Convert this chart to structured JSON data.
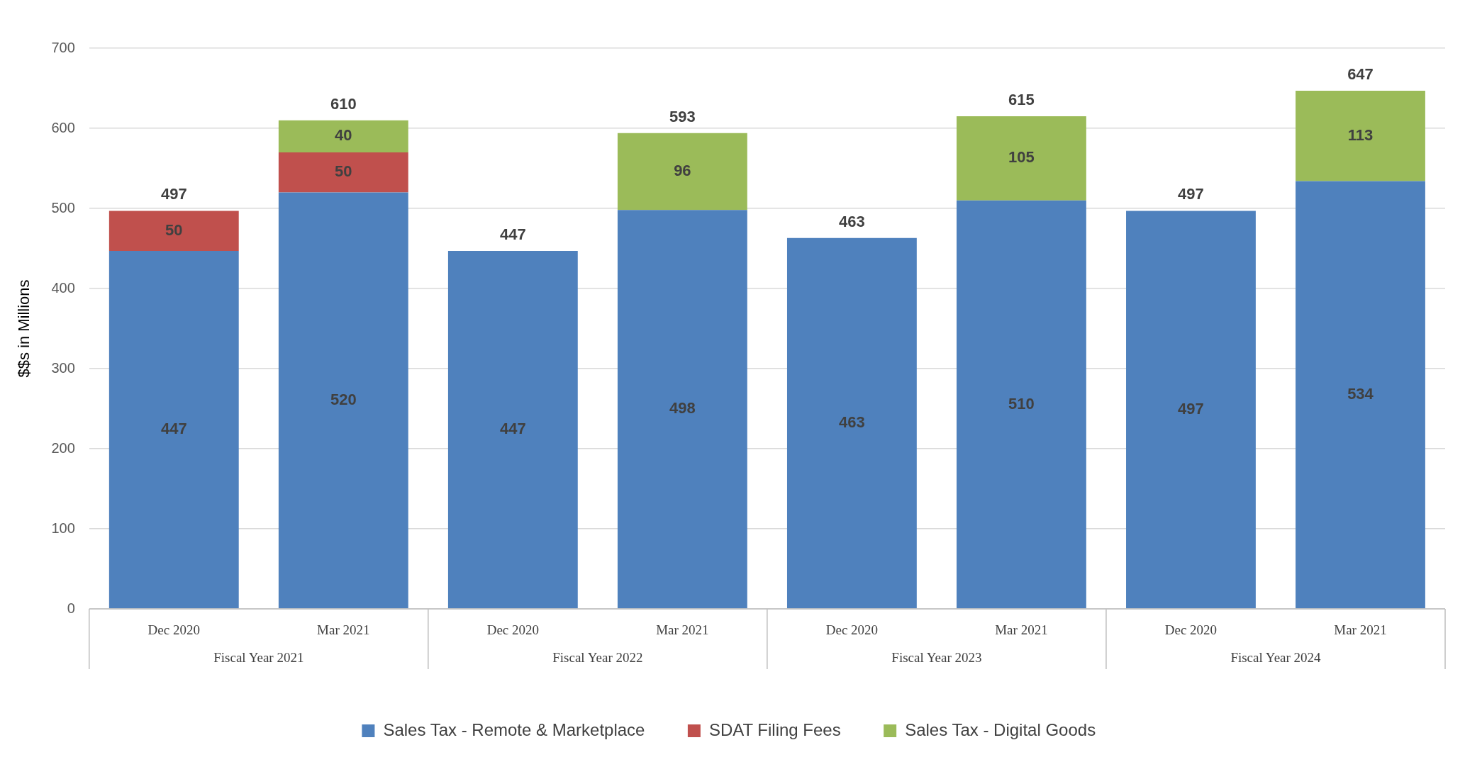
{
  "chart_data": {
    "type": "bar",
    "stacked": true,
    "ylabel": "$$s in Millions",
    "categories": [
      "Dec 2020",
      "Mar 2021",
      "Dec 2020",
      "Mar 2021",
      "Dec 2020",
      "Mar 2021",
      "Dec 2020",
      "Mar 2021"
    ],
    "annotations": [
      "Fiscal Year 2021",
      "Fiscal Year 2022",
      "Fiscal Year 2023",
      "Fiscal Year 2024"
    ],
    "series": [
      {
        "name": "Sales Tax - Remote & Marketplace",
        "color": "#4f81bd",
        "values": [
          447,
          520,
          447,
          498,
          463,
          510,
          497,
          534
        ]
      },
      {
        "name": "SDAT Filing Fees",
        "color": "#c0504d",
        "values": [
          50,
          50,
          null,
          null,
          null,
          null,
          null,
          null
        ]
      },
      {
        "name": "Sales Tax - Digital Goods",
        "color": "#9bbb59",
        "values": [
          null,
          40,
          null,
          96,
          null,
          105,
          null,
          113
        ]
      }
    ],
    "totals": [
      "497",
      "610",
      "447",
      "593",
      "463",
      "615",
      "497",
      "647"
    ],
    "data_labels": true,
    "ylim": [
      0,
      700
    ],
    "yticks": [
      0,
      100,
      200,
      300,
      400,
      500,
      600,
      700
    ],
    "grid": "y",
    "legend": "bottom"
  }
}
